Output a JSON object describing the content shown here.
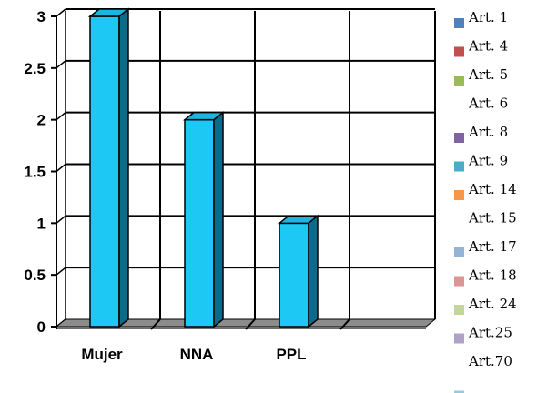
{
  "chart_data": {
    "type": "bar",
    "categories": [
      "Mujer",
      "NNA",
      "PPL",
      ""
    ],
    "values": [
      3,
      2,
      1,
      null
    ],
    "ylim": [
      0,
      3
    ],
    "yticks": [
      "0",
      "0.5",
      "1",
      "1.5",
      "2",
      "2.5",
      "3"
    ],
    "grid": true,
    "bar_color": "#1ec8f4",
    "legend_position": "right",
    "legend": [
      {
        "label": "Art. 1",
        "color": "#4f81bd"
      },
      {
        "label": "Art. 4",
        "color": "#c0504d"
      },
      {
        "label": "Art. 5",
        "color": "#9bbb59"
      },
      {
        "label": "Art. 6",
        "color": null
      },
      {
        "label": "Art. 8",
        "color": "#8064a2"
      },
      {
        "label": "Art. 9",
        "color": "#4bacc6"
      },
      {
        "label": "Art. 14",
        "color": "#f79646"
      },
      {
        "label": "Art. 15",
        "color": null
      },
      {
        "label": "Art. 17",
        "color": "#95b3d7"
      },
      {
        "label": "Art. 18",
        "color": "#d99694"
      },
      {
        "label": "Art. 24",
        "color": "#c3d69b"
      },
      {
        "label": "Art.25",
        "color": "#b2a1c7"
      },
      {
        "label": "Art.70",
        "color": null
      },
      {
        "label": "",
        "color": "#93cddd"
      }
    ]
  }
}
